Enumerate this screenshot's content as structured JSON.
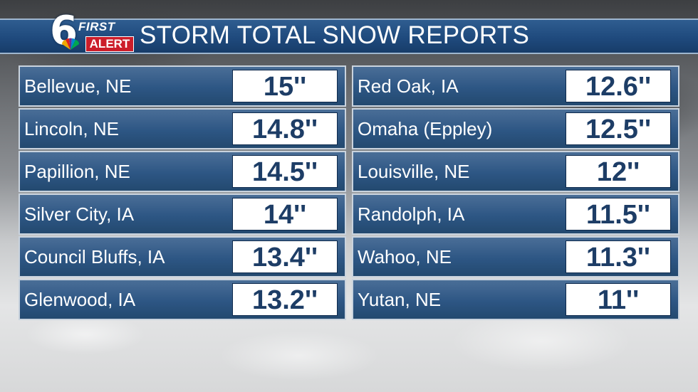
{
  "header": {
    "title": "STORM TOTAL SNOW REPORTS",
    "logo_number": "6",
    "logo_first": "FIRST",
    "logo_alert": "ALERT"
  },
  "colors": {
    "header_blue": "#1f4a7d",
    "row_blue": "#2d5684",
    "alert_red": "#cc1d2a",
    "value_text": "#1d3d66"
  },
  "reports_left": [
    {
      "city": "Bellevue, NE",
      "amount": "15''"
    },
    {
      "city": "Lincoln, NE",
      "amount": "14.8''"
    },
    {
      "city": "Papillion, NE",
      "amount": "14.5''"
    },
    {
      "city": "Silver City, IA",
      "amount": "14''"
    },
    {
      "city": "Council Bluffs, IA",
      "amount": "13.4''"
    },
    {
      "city": "Glenwood, IA",
      "amount": "13.2''"
    }
  ],
  "reports_right": [
    {
      "city": "Red Oak, IA",
      "amount": "12.6''"
    },
    {
      "city": "Omaha (Eppley)",
      "amount": "12.5''"
    },
    {
      "city": "Louisville, NE",
      "amount": "12''"
    },
    {
      "city": "Randolph, IA",
      "amount": "11.5''"
    },
    {
      "city": "Wahoo, NE",
      "amount": "11.3''"
    },
    {
      "city": "Yutan, NE",
      "amount": "11''"
    }
  ]
}
